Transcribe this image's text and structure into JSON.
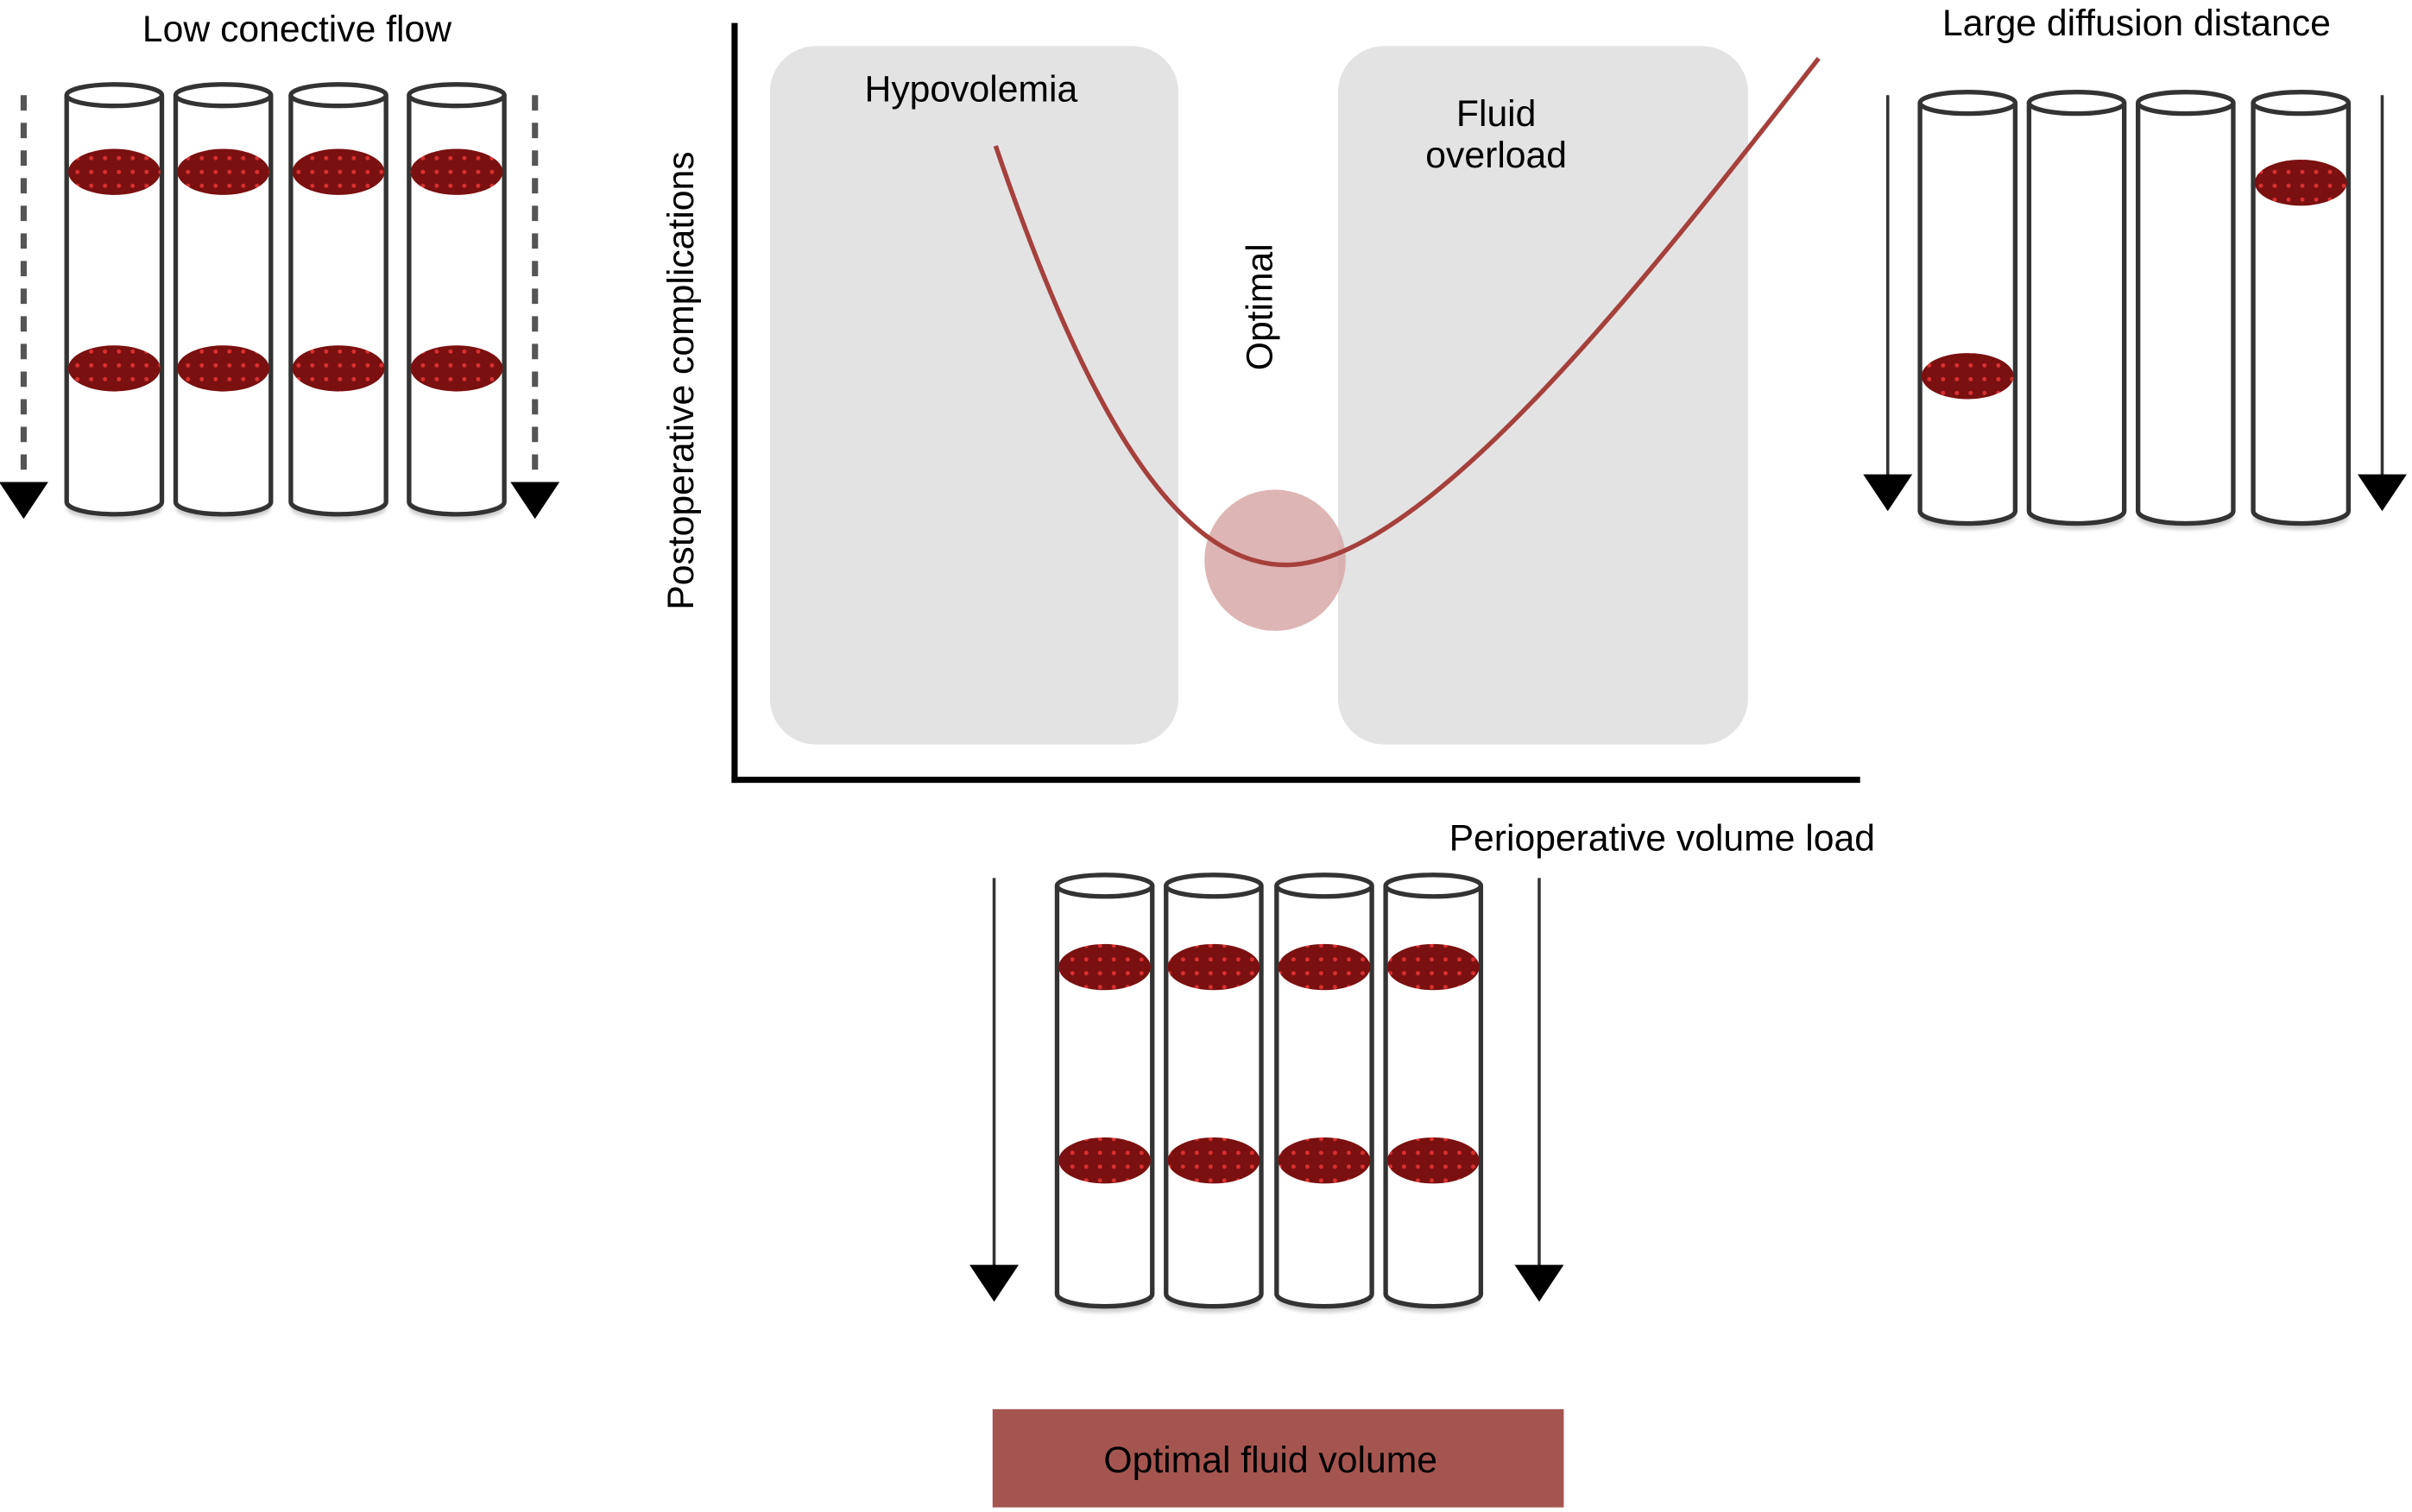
{
  "panels": {
    "low_flow": {
      "title": "Low conective flow",
      "tubes": 4,
      "blood_per_tube": [
        2,
        2,
        2,
        2
      ],
      "arrow_style": "dashed"
    },
    "large_diffusion": {
      "title": "Large diffusion distance",
      "tubes": 4,
      "blood_per_tube": [
        1,
        0,
        0,
        1
      ],
      "arrow_style": "solid"
    },
    "optimal": {
      "tubes": 4,
      "blood_per_tube": [
        2,
        2,
        2,
        2
      ],
      "arrow_style": "solid"
    }
  },
  "curve_panel": {
    "y_axis_label": "Postoperative complications",
    "x_axis_label": "Perioperative volume load",
    "regions": {
      "hypovolemia": "Hypovolemia",
      "fluid_overload_line1": "Fluid",
      "fluid_overload_line2": "overload",
      "optimal": "Optimal"
    }
  },
  "optimal_box": {
    "label": "Optimal fluid volume"
  },
  "colors": {
    "curve": "#a5403c",
    "blood": "#8a1414",
    "region": "#e3e3e3",
    "optimal_circle": "#d8a8a8",
    "optimal_box": "#a55550"
  }
}
